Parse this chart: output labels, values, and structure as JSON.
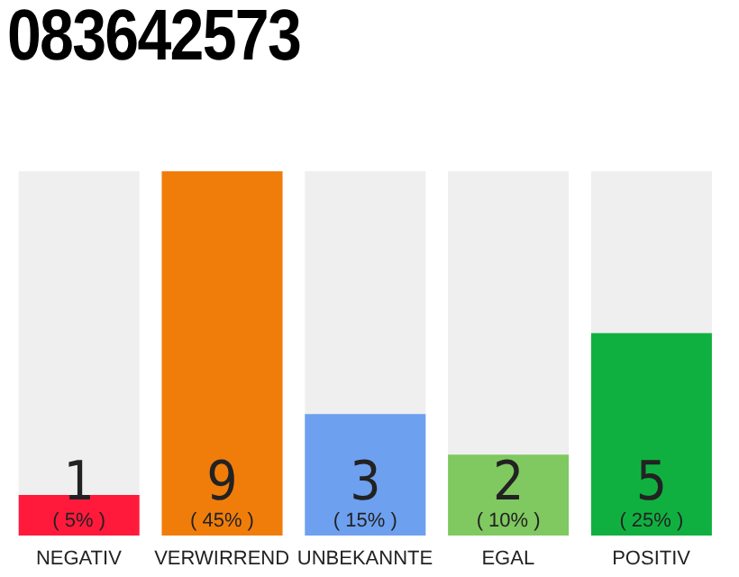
{
  "chart_data": {
    "type": "bar",
    "title": "083642573",
    "categories": [
      "NEGATIV",
      "VERWIRREND",
      "UNBEKANNTE",
      "EGAL",
      "POSITIV"
    ],
    "values": [
      1,
      9,
      3,
      2,
      5
    ],
    "colors": [
      "#ff1a3c",
      "#f07d0a",
      "#6ea0f0",
      "#80c860",
      "#10b040"
    ],
    "ylim": [
      0,
      9
    ],
    "tick_labels": "x",
    "grid": false,
    "legend": false,
    "data_labels": true,
    "annotations": [
      "( 5% )",
      "( 45% )",
      "( 15% )",
      "( 10% )",
      "( 25% )"
    ]
  }
}
